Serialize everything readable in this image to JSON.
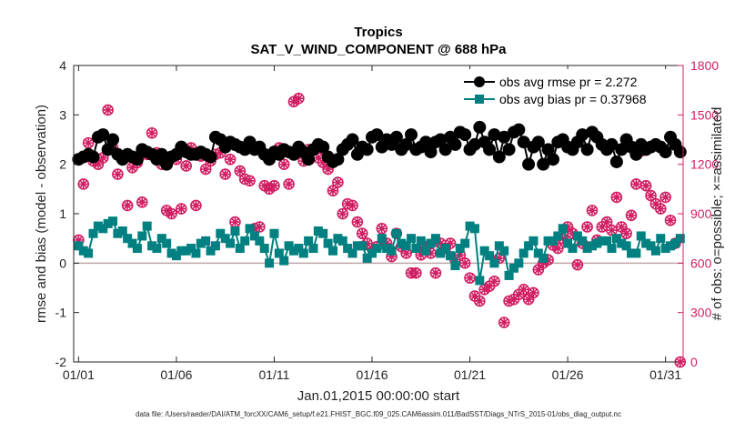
{
  "colors": {
    "rmse": "#000000",
    "bias": "#008080",
    "obs": "#d11f63",
    "zero_line": "#bfa6a6",
    "axis": "#262626",
    "background": "#ffffff"
  },
  "icons": {
    "rmse_marker": "filled-circle-with-spikes",
    "bias_marker": "filled-square",
    "possible_marker": "circle",
    "assimilated_marker": "x-cross"
  },
  "chart_data": {
    "type": "line",
    "title": "Tropics",
    "subtitle": "SAT_V_WIND_COMPONENT @ 688 hPa",
    "xlabel": "Jan.01,2015 00:00:00 start",
    "ylabel": "rmse and bias (model - observation)",
    "y2label": "# of obs: o=possible; ×=assimilated",
    "footnote": "data file: /Users/raeder/DAI/ATM_forcXX/CAM6_setup/f.e21.FHIST_BGC.f09_025.CAM6assim.011/BadSST/Diags_NTrS_2015-01/obs_diag_output.nc",
    "xlim": [
      0.75,
      31.9
    ],
    "ylim": [
      -2,
      4
    ],
    "y2lim": [
      0,
      1800
    ],
    "x_ticks": [
      1,
      6,
      11,
      16,
      21,
      26,
      31
    ],
    "x_tick_labels": [
      "01/01",
      "01/06",
      "01/11",
      "01/16",
      "01/21",
      "01/26",
      "01/31"
    ],
    "y_ticks": [
      -2,
      -1,
      0,
      1,
      2,
      3,
      4
    ],
    "y_tick_labels": [
      "-2",
      "-1",
      "0",
      "1",
      "2",
      "3",
      "4"
    ],
    "y2_ticks": [
      0,
      300,
      600,
      900,
      1200,
      1500,
      1800
    ],
    "y2_tick_labels": [
      "0",
      "300",
      "600",
      "900",
      "1200",
      "1500",
      "1800"
    ],
    "legend_position": "top-right",
    "x": [
      1.0,
      1.25,
      1.5,
      1.75,
      2.0,
      2.25,
      2.5,
      2.75,
      3.0,
      3.25,
      3.5,
      3.75,
      4.0,
      4.25,
      4.5,
      4.75,
      5.0,
      5.25,
      5.5,
      5.75,
      6.0,
      6.25,
      6.5,
      6.75,
      7.0,
      7.25,
      7.5,
      7.75,
      8.0,
      8.25,
      8.5,
      8.75,
      9.0,
      9.25,
      9.5,
      9.75,
      10.0,
      10.25,
      10.5,
      10.75,
      11.0,
      11.25,
      11.5,
      11.75,
      12.0,
      12.25,
      12.5,
      12.75,
      13.0,
      13.25,
      13.5,
      13.75,
      14.0,
      14.25,
      14.5,
      14.75,
      15.0,
      15.25,
      15.5,
      15.75,
      16.0,
      16.25,
      16.5,
      16.75,
      17.0,
      17.25,
      17.5,
      17.75,
      18.0,
      18.25,
      18.5,
      18.75,
      19.0,
      19.25,
      19.5,
      19.75,
      20.0,
      20.25,
      20.5,
      20.75,
      21.0,
      21.25,
      21.5,
      21.75,
      22.0,
      22.25,
      22.5,
      22.75,
      23.0,
      23.25,
      23.5,
      23.75,
      24.0,
      24.25,
      24.5,
      24.75,
      25.0,
      25.25,
      25.5,
      25.75,
      26.0,
      26.25,
      26.5,
      26.75,
      27.0,
      27.25,
      27.5,
      27.75,
      28.0,
      28.25,
      28.5,
      28.75,
      29.0,
      29.25,
      29.5,
      29.75,
      30.0,
      30.25,
      30.5,
      30.75,
      31.0,
      31.25,
      31.5,
      31.75
    ],
    "series": [
      {
        "name": "obs avg rmse",
        "legend_label": "obs avg rmse pr = 2.272",
        "axis": "left",
        "marker": "rmse_marker",
        "values": [
          2.1,
          2.15,
          2.2,
          2.15,
          2.55,
          2.6,
          2.3,
          2.5,
          2.2,
          2.1,
          2.2,
          2.15,
          2.1,
          2.3,
          2.25,
          2.2,
          2.1,
          2.2,
          2.0,
          2.15,
          2.2,
          2.35,
          2.25,
          2.2,
          2.2,
          2.25,
          2.2,
          2.15,
          2.55,
          2.5,
          2.35,
          2.45,
          2.4,
          2.35,
          2.3,
          2.45,
          2.3,
          2.35,
          2.2,
          2.1,
          2.25,
          2.2,
          2.3,
          2.25,
          2.2,
          2.35,
          2.25,
          2.1,
          2.3,
          2.4,
          2.35,
          2.15,
          2.05,
          2.1,
          2.3,
          2.4,
          2.5,
          2.2,
          2.35,
          2.3,
          2.55,
          2.6,
          2.35,
          2.5,
          2.4,
          2.55,
          2.3,
          2.4,
          2.6,
          2.3,
          2.35,
          2.45,
          2.25,
          2.45,
          2.5,
          2.3,
          2.55,
          2.4,
          2.65,
          2.6,
          2.3,
          2.4,
          2.75,
          2.45,
          2.3,
          2.6,
          2.15,
          2.55,
          2.3,
          2.65,
          2.7,
          2.45,
          2.0,
          2.35,
          2.45,
          2.0,
          2.3,
          2.1,
          2.45,
          2.5,
          2.35,
          2.3,
          2.45,
          2.6,
          2.3,
          2.65,
          2.55,
          2.4,
          2.3,
          2.4,
          2.05,
          2.3,
          2.5,
          2.35,
          2.2,
          2.4,
          2.3,
          2.35,
          2.4,
          2.35,
          2.25,
          2.55,
          2.4,
          2.25
        ]
      },
      {
        "name": "obs avg bias",
        "legend_label": "obs avg bias pr = 0.37968",
        "axis": "left",
        "marker": "bias_marker",
        "values": [
          0.35,
          0.25,
          0.2,
          0.6,
          0.75,
          0.7,
          0.8,
          0.85,
          0.6,
          0.65,
          0.5,
          0.4,
          0.3,
          0.55,
          0.75,
          0.35,
          0.3,
          0.5,
          0.4,
          0.2,
          0.15,
          0.25,
          0.25,
          0.3,
          0.2,
          0.4,
          0.45,
          0.25,
          0.35,
          0.6,
          0.5,
          0.4,
          0.65,
          0.3,
          0.45,
          0.7,
          0.55,
          0.45,
          0.3,
          0.0,
          0.6,
          0.2,
          0.05,
          0.35,
          0.25,
          0.3,
          0.2,
          0.45,
          0.3,
          0.65,
          0.6,
          0.4,
          0.25,
          0.5,
          0.45,
          0.3,
          0.2,
          0.35,
          0.35,
          0.1,
          0.2,
          0.3,
          0.5,
          0.3,
          0.25,
          0.6,
          0.4,
          0.35,
          0.5,
          0.3,
          0.45,
          0.25,
          0.4,
          0.5,
          0.2,
          0.3,
          0.15,
          -0.05,
          0.3,
          0.4,
          0.75,
          0.7,
          -0.35,
          0.25,
          0.15,
          0.0,
          0.35,
          0.25,
          -0.25,
          -0.1,
          0.0,
          0.2,
          0.35,
          0.45,
          0.2,
          0.1,
          0.45,
          0.45,
          0.55,
          0.7,
          0.4,
          0.3,
          0.55,
          0.45,
          0.3,
          0.35,
          0.4,
          0.45,
          0.45,
          0.3,
          0.5,
          0.4,
          0.35,
          0.2,
          0.2,
          0.55,
          0.4,
          0.35,
          0.25,
          0.5,
          0.3,
          0.35,
          0.4,
          0.5
        ]
      },
      {
        "name": "# obs possible",
        "axis": "right",
        "marker": "possible_marker",
        "values": [
          740,
          1080,
          1330,
          1220,
          1200,
          1240,
          1530,
          1300,
          1140,
          1230,
          950,
          1180,
          1210,
          970,
          1260,
          1390,
          1270,
          1200,
          920,
          900,
          1230,
          930,
          1190,
          1300,
          950,
          1250,
          1170,
          1220,
          1260,
          1270,
          1140,
          1230,
          850,
          1160,
          1110,
          1100,
          810,
          820,
          1070,
          1050,
          1070,
          1300,
          1200,
          1080,
          1580,
          1600,
          1220,
          1290,
          1290,
          1240,
          1210,
          1170,
          1040,
          1090,
          900,
          960,
          950,
          850,
          780,
          720,
          690,
          700,
          810,
          720,
          640,
          780,
          700,
          660,
          540,
          540,
          650,
          700,
          660,
          540,
          720,
          690,
          720,
          620,
          650,
          600,
          510,
          400,
          370,
          440,
          460,
          490,
          630,
          240,
          370,
          380,
          410,
          440,
          380,
          420,
          560,
          600,
          620,
          710,
          690,
          750,
          820,
          780,
          590,
          720,
          820,
          920,
          740,
          820,
          850,
          800,
          1000,
          820,
          780,
          890,
          1080,
          1280,
          1070,
          1010,
          960,
          930,
          1000,
          860,
          720,
          0
        ]
      },
      {
        "name": "# obs assimilated",
        "axis": "right",
        "marker": "assimilated_marker",
        "values": [
          740,
          1080,
          1330,
          1220,
          1200,
          1240,
          1530,
          1300,
          1140,
          1230,
          950,
          1180,
          1210,
          970,
          1260,
          1390,
          1270,
          1200,
          920,
          900,
          1230,
          930,
          1190,
          1300,
          950,
          1250,
          1170,
          1220,
          1260,
          1270,
          1140,
          1230,
          850,
          1160,
          1110,
          1100,
          810,
          820,
          1070,
          1050,
          1070,
          1300,
          1200,
          1080,
          1580,
          1600,
          1220,
          1290,
          1290,
          1240,
          1210,
          1170,
          1040,
          1090,
          900,
          960,
          950,
          850,
          780,
          720,
          690,
          700,
          810,
          720,
          640,
          780,
          700,
          660,
          540,
          540,
          650,
          700,
          660,
          540,
          720,
          690,
          720,
          620,
          650,
          600,
          510,
          400,
          370,
          440,
          460,
          490,
          630,
          240,
          370,
          380,
          410,
          440,
          380,
          420,
          560,
          600,
          620,
          710,
          690,
          750,
          820,
          780,
          590,
          720,
          820,
          920,
          740,
          820,
          850,
          800,
          1000,
          820,
          780,
          890,
          1080,
          1280,
          1070,
          1010,
          960,
          930,
          1000,
          860,
          720,
          0
        ]
      }
    ]
  }
}
